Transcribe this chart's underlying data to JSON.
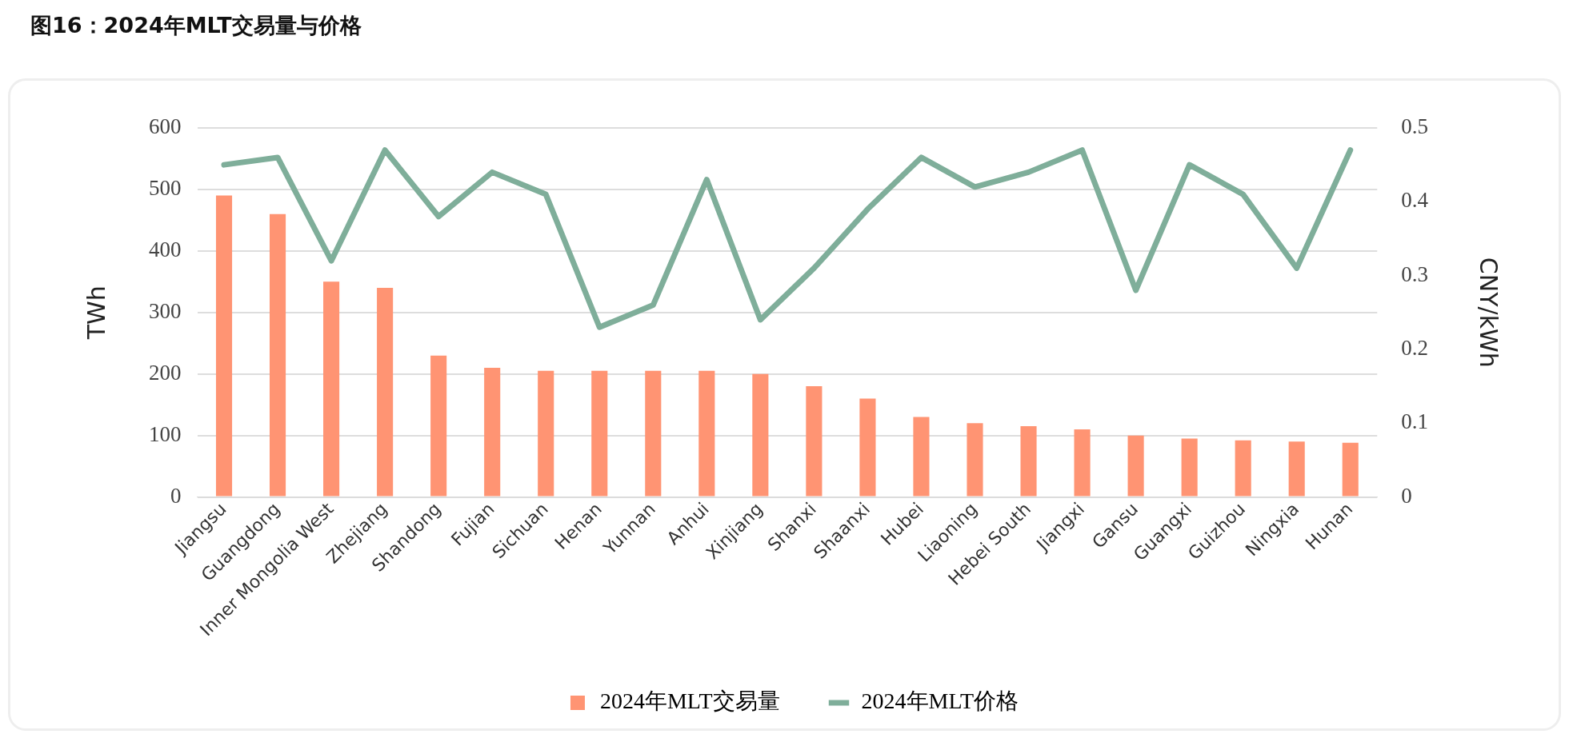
{
  "chart_data": {
    "type": "bar",
    "title": "图16：2024年MLT交易量与价格",
    "ylabel": "TWh",
    "y2label": "CNY/kWh",
    "categories": [
      "Jiangsu",
      "Guangdong",
      "Inner Mongolia West",
      "Zhejiang",
      "Shandong",
      "Fujian",
      "Sichuan",
      "Henan",
      "Yunnan",
      "Anhui",
      "Xinjiang",
      "Shanxi",
      "Shaanxi",
      "Hubei",
      "Liaoning",
      "Hebei South",
      "Jiangxi",
      "Gansu",
      "Guangxi",
      "Guizhou",
      "Ningxia",
      "Hunan"
    ],
    "series": [
      {
        "name": "2024年MLT交易量",
        "color": "#ff9473",
        "values": [
          490,
          460,
          350,
          340,
          230,
          210,
          205,
          205,
          205,
          205,
          200,
          180,
          160,
          130,
          120,
          115,
          110,
          100,
          95,
          92,
          90,
          88
        ]
      },
      {
        "name": "2024年MLT价格",
        "type": "line",
        "axis": "y2",
        "color": "#7fae9a",
        "values": [
          0.45,
          0.46,
          0.32,
          0.47,
          0.38,
          0.44,
          0.41,
          0.23,
          0.26,
          0.43,
          0.24,
          0.31,
          0.39,
          0.46,
          0.42,
          0.44,
          0.47,
          0.28,
          0.45,
          0.41,
          0.31,
          0.47
        ]
      }
    ],
    "ylim": [
      0,
      600
    ],
    "yticks": [
      0,
      100,
      200,
      300,
      400,
      500,
      600
    ],
    "y2lim": [
      0,
      0.5
    ],
    "y2ticks": [
      0,
      0.1,
      0.2,
      0.3,
      0.4,
      0.5
    ],
    "grid": "y",
    "legend": "bottom",
    "line_style": "solid"
  }
}
